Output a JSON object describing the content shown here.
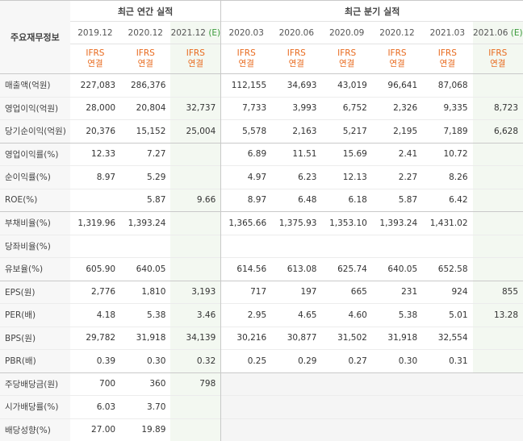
{
  "header": {
    "row_label": "주요재무정보",
    "annual_title": "최근 연간 실적",
    "quarter_title": "최근 분기 실적",
    "periods": [
      "2019.12",
      "2020.12",
      "2021.12",
      "2020.03",
      "2020.06",
      "2020.09",
      "2020.12",
      "2021.03",
      "2021.06"
    ],
    "estimate_marks": [
      "",
      "",
      "(E)",
      "",
      "",
      "",
      "",
      "",
      "(E)"
    ],
    "ifrs": "IFRS",
    "basis": "연결"
  },
  "rows": [
    {
      "label": "매출액(억원)",
      "values": [
        "227,083",
        "286,376",
        "",
        "112,155",
        "34,693",
        "43,019",
        "96,641",
        "87,068",
        ""
      ]
    },
    {
      "label": "영업이익(억원)",
      "values": [
        "28,000",
        "20,804",
        "32,737",
        "7,733",
        "3,993",
        "6,752",
        "2,326",
        "9,335",
        "8,723"
      ]
    },
    {
      "label": "당기순이익(억원)",
      "values": [
        "20,376",
        "15,152",
        "25,004",
        "5,578",
        "2,163",
        "5,217",
        "2,195",
        "7,189",
        "6,628"
      ]
    },
    {
      "label": "영업이익률(%)",
      "values": [
        "12.33",
        "7.27",
        "",
        "6.89",
        "11.51",
        "15.69",
        "2.41",
        "10.72",
        ""
      ]
    },
    {
      "label": "순이익률(%)",
      "values": [
        "8.97",
        "5.29",
        "",
        "4.97",
        "6.23",
        "12.13",
        "2.27",
        "8.26",
        ""
      ]
    },
    {
      "label": "ROE(%)",
      "values": [
        "",
        "5.87",
        "9.66",
        "8.97",
        "6.48",
        "6.18",
        "5.87",
        "6.42",
        ""
      ]
    },
    {
      "label": "부채비율(%)",
      "values": [
        "1,319.96",
        "1,393.24",
        "",
        "1,365.66",
        "1,375.93",
        "1,353.10",
        "1,393.24",
        "1,431.02",
        ""
      ]
    },
    {
      "label": "당좌비율(%)",
      "values": [
        "",
        "",
        "",
        "",
        "",
        "",
        "",
        "",
        ""
      ]
    },
    {
      "label": "유보율(%)",
      "values": [
        "605.90",
        "640.05",
        "",
        "614.56",
        "613.08",
        "625.74",
        "640.05",
        "652.58",
        ""
      ]
    },
    {
      "label": "EPS(원)",
      "values": [
        "2,776",
        "1,810",
        "3,193",
        "717",
        "197",
        "665",
        "231",
        "924",
        "855"
      ]
    },
    {
      "label": "PER(배)",
      "values": [
        "4.18",
        "5.38",
        "3.46",
        "2.95",
        "4.65",
        "4.60",
        "5.38",
        "5.01",
        "13.28"
      ]
    },
    {
      "label": "BPS(원)",
      "values": [
        "29,782",
        "31,918",
        "34,139",
        "30,216",
        "30,877",
        "31,502",
        "31,918",
        "32,554",
        ""
      ]
    },
    {
      "label": "PBR(배)",
      "values": [
        "0.39",
        "0.30",
        "0.32",
        "0.25",
        "0.29",
        "0.27",
        "0.30",
        "0.31",
        ""
      ]
    },
    {
      "label": "주당배당금(원)",
      "values": [
        "700",
        "360",
        "798",
        "",
        "",
        "",
        "",
        "",
        ""
      ]
    },
    {
      "label": "시가배당률(%)",
      "values": [
        "6.03",
        "3.70",
        "",
        "",
        "",
        "",
        "",
        "",
        ""
      ]
    },
    {
      "label": "배당성향(%)",
      "values": [
        "27.00",
        "19.89",
        "",
        "",
        "",
        "",
        "",
        "",
        ""
      ]
    }
  ]
}
